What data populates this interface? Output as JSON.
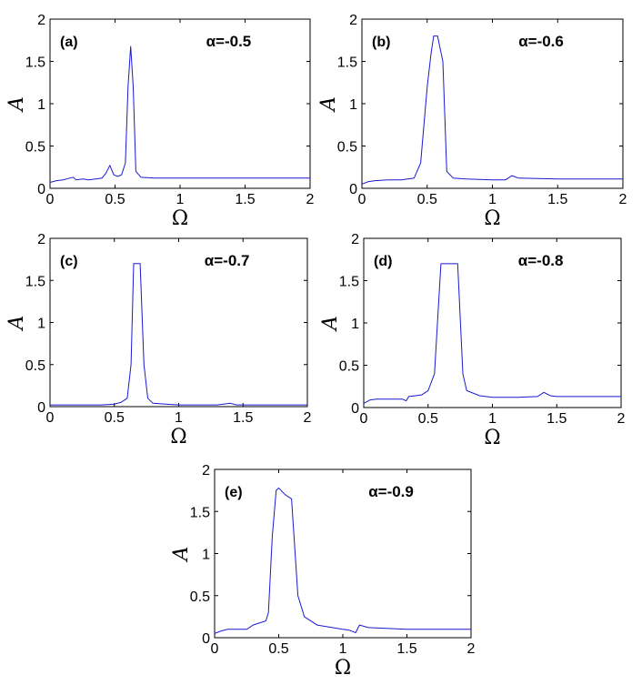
{
  "chart_data": [
    {
      "type": "line",
      "panel_label": "(a)",
      "annotation": "α=-0.5",
      "xlabel": "Ω",
      "ylabel": "A",
      "xlim": [
        0,
        2
      ],
      "ylim": [
        0,
        2
      ],
      "xticks": [
        "0",
        "0.5",
        "1",
        "1.5",
        "2"
      ],
      "yticks": [
        "0",
        "0.5",
        "1",
        "1.5",
        "2"
      ],
      "grid": false,
      "x": [
        0,
        0.05,
        0.1,
        0.15,
        0.18,
        0.2,
        0.25,
        0.3,
        0.35,
        0.4,
        0.43,
        0.46,
        0.49,
        0.52,
        0.55,
        0.58,
        0.6,
        0.62,
        0.64,
        0.66,
        0.7,
        0.8,
        1.0,
        1.5,
        2.0
      ],
      "y": [
        0.07,
        0.09,
        0.1,
        0.12,
        0.13,
        0.1,
        0.11,
        0.1,
        0.11,
        0.12,
        0.18,
        0.27,
        0.16,
        0.14,
        0.16,
        0.3,
        1.2,
        1.68,
        1.2,
        0.2,
        0.13,
        0.12,
        0.12,
        0.12,
        0.12
      ]
    },
    {
      "type": "line",
      "panel_label": "(b)",
      "annotation": "α=-0.6",
      "xlabel": "Ω",
      "ylabel": "A",
      "xlim": [
        0,
        2
      ],
      "ylim": [
        0,
        2
      ],
      "xticks": [
        "0",
        "0.5",
        "1",
        "1.5",
        "2"
      ],
      "yticks": [
        "0",
        "0.5",
        "1",
        "1.5",
        "2"
      ],
      "grid": false,
      "x": [
        0,
        0.05,
        0.1,
        0.2,
        0.3,
        0.4,
        0.45,
        0.5,
        0.53,
        0.55,
        0.58,
        0.62,
        0.65,
        0.7,
        0.8,
        1.0,
        1.1,
        1.15,
        1.2,
        1.5,
        2.0
      ],
      "y": [
        0.05,
        0.08,
        0.09,
        0.1,
        0.1,
        0.12,
        0.3,
        1.2,
        1.6,
        1.8,
        1.8,
        1.5,
        0.2,
        0.12,
        0.11,
        0.1,
        0.1,
        0.15,
        0.12,
        0.11,
        0.11
      ]
    },
    {
      "type": "line",
      "panel_label": "(c)",
      "annotation": "α=-0.7",
      "xlabel": "Ω",
      "ylabel": "A",
      "xlim": [
        0,
        2
      ],
      "ylim": [
        0,
        2
      ],
      "xticks": [
        "0",
        "0.5",
        "1",
        "1.5",
        "2"
      ],
      "yticks": [
        "0",
        "0.5",
        "1",
        "1.5",
        "2"
      ],
      "grid": false,
      "x": [
        0,
        0.2,
        0.4,
        0.5,
        0.55,
        0.6,
        0.63,
        0.65,
        0.7,
        0.73,
        0.76,
        0.8,
        0.9,
        1.0,
        1.3,
        1.4,
        1.45,
        1.5,
        2.0
      ],
      "y": [
        0.02,
        0.02,
        0.02,
        0.03,
        0.05,
        0.1,
        0.5,
        1.7,
        1.7,
        0.5,
        0.1,
        0.04,
        0.03,
        0.02,
        0.02,
        0.04,
        0.02,
        0.02,
        0.02
      ]
    },
    {
      "type": "line",
      "panel_label": "(d)",
      "annotation": "α=-0.8",
      "xlabel": "Ω",
      "ylabel": "A",
      "xlim": [
        0,
        2
      ],
      "ylim": [
        0,
        2
      ],
      "xticks": [
        "0",
        "0.5",
        "1",
        "1.5",
        "2"
      ],
      "yticks": [
        "0",
        "0.5",
        "1",
        "1.5",
        "2"
      ],
      "grid": false,
      "x": [
        0,
        0.05,
        0.1,
        0.2,
        0.3,
        0.33,
        0.35,
        0.45,
        0.5,
        0.55,
        0.6,
        0.65,
        0.7,
        0.73,
        0.77,
        0.8,
        0.9,
        1.0,
        1.2,
        1.35,
        1.4,
        1.45,
        1.5,
        2.0
      ],
      "y": [
        0.05,
        0.09,
        0.1,
        0.1,
        0.1,
        0.08,
        0.13,
        0.15,
        0.2,
        0.4,
        1.7,
        1.7,
        1.7,
        1.7,
        0.4,
        0.2,
        0.14,
        0.12,
        0.12,
        0.13,
        0.18,
        0.14,
        0.13,
        0.13
      ]
    },
    {
      "type": "line",
      "panel_label": "(e)",
      "annotation": "α=-0.9",
      "xlabel": "Ω",
      "ylabel": "A",
      "xlim": [
        0,
        2
      ],
      "ylim": [
        0,
        2
      ],
      "xticks": [
        "0",
        "0.5",
        "1",
        "1.5",
        "2"
      ],
      "yticks": [
        "0",
        "0.5",
        "1",
        "1.5",
        "2"
      ],
      "grid": false,
      "x": [
        0,
        0.05,
        0.1,
        0.2,
        0.25,
        0.3,
        0.4,
        0.42,
        0.45,
        0.48,
        0.5,
        0.55,
        0.6,
        0.65,
        0.7,
        0.8,
        1.0,
        1.05,
        1.1,
        1.13,
        1.2,
        1.5,
        2.0
      ],
      "y": [
        0.05,
        0.08,
        0.1,
        0.1,
        0.1,
        0.15,
        0.2,
        0.3,
        1.2,
        1.75,
        1.78,
        1.7,
        1.65,
        0.5,
        0.25,
        0.15,
        0.1,
        0.09,
        0.06,
        0.15,
        0.12,
        0.1,
        0.1
      ]
    }
  ]
}
